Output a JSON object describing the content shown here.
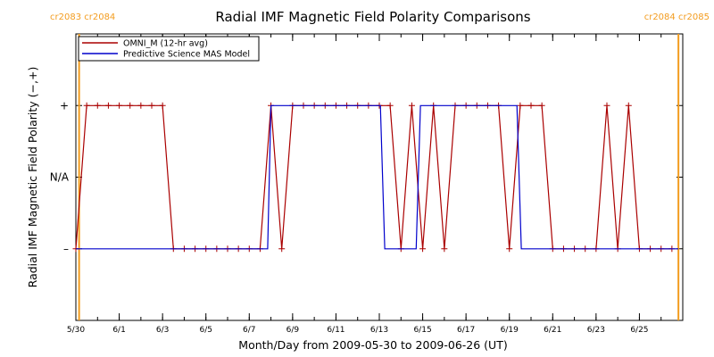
{
  "chart_data": {
    "type": "line",
    "title": "Radial IMF Magnetic Field Polarity Comparisons",
    "xlabel": "Month/Day from 2009-05-30 to 2009-06-26 (UT)",
    "ylabel": "Radial IMF Magnetic Field Polarity (−,+)",
    "xlim": [
      0,
      28
    ],
    "ylim": [
      -2,
      2
    ],
    "grid": false,
    "legend_position": "top-left",
    "x_ticks": [
      {
        "x": 0,
        "label": "5/30"
      },
      {
        "x": 2,
        "label": "6/1"
      },
      {
        "x": 4,
        "label": "6/3"
      },
      {
        "x": 6,
        "label": "6/5"
      },
      {
        "x": 8,
        "label": "6/7"
      },
      {
        "x": 10,
        "label": "6/9"
      },
      {
        "x": 12,
        "label": "6/11"
      },
      {
        "x": 14,
        "label": "6/13"
      },
      {
        "x": 16,
        "label": "6/15"
      },
      {
        "x": 18,
        "label": "6/17"
      },
      {
        "x": 20,
        "label": "6/19"
      },
      {
        "x": 22,
        "label": "6/21"
      },
      {
        "x": 24,
        "label": "6/23"
      },
      {
        "x": 26,
        "label": "6/25"
      }
    ],
    "y_ticks": [
      {
        "y": 1,
        "label": "+"
      },
      {
        "y": 0,
        "label": "N/A"
      },
      {
        "y": -1,
        "label": "–"
      }
    ],
    "carrington_markers": [
      {
        "x": 0.15,
        "labels": [
          "cr2083",
          "cr2084"
        ],
        "side": "left"
      },
      {
        "x": 27.8,
        "labels": [
          "cr2084",
          "cr2085"
        ],
        "side": "right"
      }
    ],
    "series": [
      {
        "name": "OMNI_M (12-hr avg)",
        "color": "#aa0000",
        "marker": "plus",
        "x": [
          0,
          0.5,
          1.0,
          1.5,
          2.0,
          2.5,
          3.0,
          3.5,
          4.0,
          4.5,
          5.0,
          5.5,
          6.0,
          6.5,
          7.0,
          7.5,
          8.0,
          8.5,
          9.0,
          9.5,
          10.0,
          10.5,
          11.0,
          11.5,
          12.0,
          12.5,
          13.0,
          13.5,
          14.0,
          14.5,
          15.0,
          15.5,
          16.0,
          16.5,
          17.0,
          17.5,
          18.0,
          18.5,
          19.0,
          19.5,
          20.0,
          20.5,
          21.0,
          21.5,
          22.0,
          22.5,
          23.0,
          23.5,
          24.0,
          24.5,
          25.0,
          25.5,
          26.0,
          26.5,
          27.0,
          27.5
        ],
        "y": [
          -1,
          1,
          1,
          1,
          1,
          1,
          1,
          1,
          1,
          -1,
          -1,
          -1,
          -1,
          -1,
          -1,
          -1,
          -1,
          -1,
          1,
          -1,
          1,
          1,
          1,
          1,
          1,
          1,
          1,
          1,
          1,
          1,
          -1,
          1,
          -1,
          1,
          -1,
          1,
          1,
          1,
          1,
          1,
          -1,
          1,
          1,
          1,
          -1,
          -1,
          -1,
          -1,
          -1,
          1,
          -1,
          1,
          -1,
          -1,
          -1,
          -1
        ]
      },
      {
        "name": "Predictive Science MAS Model",
        "color": "#0000cc",
        "marker": "none",
        "x": [
          0,
          8.85,
          9.0,
          14.05,
          14.25,
          15.7,
          15.9,
          20.35,
          20.55,
          27.8
        ],
        "y": [
          -1,
          -1,
          1,
          1,
          -1,
          -1,
          1,
          1,
          -1,
          -1
        ]
      }
    ]
  }
}
